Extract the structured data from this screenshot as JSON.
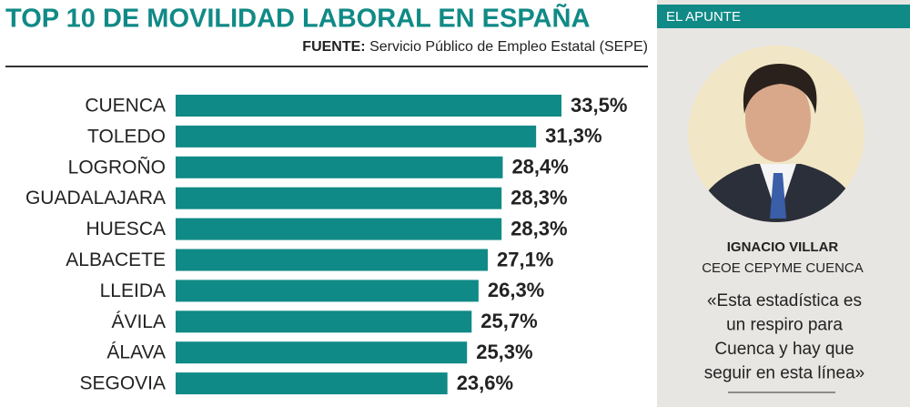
{
  "chart_data": {
    "type": "bar",
    "orientation": "horizontal",
    "title": "TOP 10 DE MOVILIDAD LABORAL EN ESPAÑA",
    "source_label": "FUENTE:",
    "source": "Servicio Público de Empleo Estatal (SEPE)",
    "categories": [
      "CUENCA",
      "TOLEDO",
      "LOGROÑO",
      "GUADALAJARA",
      "HUESCA",
      "ALBACETE",
      "LLEIDA",
      "ÁVILA",
      "ÁLAVA",
      "SEGOVIA"
    ],
    "values": [
      33.5,
      31.3,
      28.4,
      28.3,
      28.3,
      27.1,
      26.3,
      25.7,
      25.3,
      23.6
    ],
    "value_labels": [
      "33,5%",
      "31,3%",
      "28,4%",
      "28,3%",
      "28,3%",
      "27,1%",
      "26,3%",
      "25,7%",
      "25,3%",
      "23,6%"
    ],
    "color": "#108a86"
  },
  "sidebar": {
    "header": "EL APUNTE",
    "name": "IGNACIO VILLAR",
    "role": "CEOE CEPYME CUENCA",
    "quote": [
      "«Esta estadística es",
      "un respiro para",
      "Cuenca y hay que",
      "seguir en esta línea»"
    ]
  }
}
